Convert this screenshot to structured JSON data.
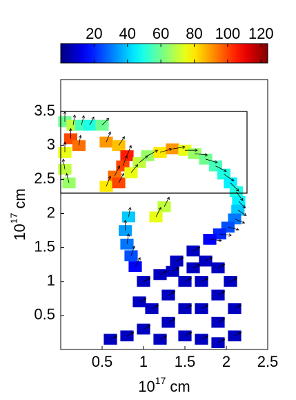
{
  "chart_data": {
    "type": "quiver",
    "xlabel": {
      "base": "10",
      "exponent": "17",
      "unit": "cm"
    },
    "ylabel": {
      "base": "10",
      "exponent": "17",
      "unit": "cm"
    },
    "xlim": [
      0,
      2.5
    ],
    "ylim": [
      0,
      3.97
    ],
    "xticks": [
      0.5,
      1,
      1.5,
      2,
      2.5
    ],
    "yticks": [
      0.5,
      1,
      1.5,
      2,
      2.5,
      3,
      3.5
    ],
    "colorbar": {
      "colormap": "jet",
      "clim": [
        0,
        124
      ],
      "ticks": [
        20,
        40,
        60,
        80,
        100,
        120
      ]
    },
    "box": {
      "x": [
        0,
        2.25
      ],
      "y": [
        2.3,
        3.5
      ]
    },
    "arrow_color": "#000000",
    "x": [
      0.05,
      0.15,
      0.25,
      0.35,
      0.5,
      0.12,
      0.22,
      0.05,
      0.05,
      0.1,
      0.55,
      0.7,
      0.8,
      0.75,
      0.65,
      0.55,
      0.7,
      0.85,
      0.95,
      1.05,
      1.2,
      1.35,
      1.5,
      1.62,
      1.75,
      1.87,
      1.97,
      2.05,
      2.12,
      2.15,
      2.14,
      2.1,
      2.02,
      1.92,
      1.8,
      1.15,
      1.25,
      0.82,
      0.78,
      0.8,
      0.85,
      0.9,
      1.0,
      1.2,
      1.4,
      1.6,
      1.75,
      1.9,
      2.05,
      1.1,
      1.3,
      1.5,
      1.7,
      1.9,
      2.1,
      1.3,
      1.5,
      1.7,
      1.9,
      2.1,
      1.0,
      0.8,
      1.2,
      1.5,
      1.7,
      1.9,
      0.95,
      0.6,
      1.35,
      1.6
    ],
    "y": [
      3.35,
      3.3,
      3.3,
      3.3,
      3.3,
      3.1,
      3.0,
      2.9,
      2.65,
      2.45,
      3.05,
      3.0,
      2.85,
      2.7,
      2.55,
      2.4,
      2.45,
      2.6,
      2.75,
      2.85,
      2.9,
      2.95,
      2.93,
      2.88,
      2.8,
      2.7,
      2.58,
      2.45,
      2.32,
      2.18,
      2.05,
      1.92,
      1.8,
      1.7,
      1.62,
      1.95,
      2.1,
      1.95,
      1.75,
      1.55,
      1.38,
      1.22,
      1.0,
      1.1,
      1.3,
      1.45,
      1.3,
      1.2,
      1.0,
      0.6,
      0.8,
      1.0,
      1.0,
      0.8,
      0.6,
      0.4,
      0.6,
      0.6,
      0.4,
      0.2,
      0.3,
      0.2,
      0.15,
      0.2,
      0.15,
      0.1,
      0.7,
      0.15,
      1.15,
      1.2
    ],
    "u": [
      0.0,
      0.02,
      0.03,
      0.05,
      0.08,
      0.0,
      0.02,
      0.0,
      -0.02,
      -0.03,
      0.05,
      0.07,
      0.05,
      0.05,
      0.06,
      0.05,
      0.06,
      0.08,
      0.1,
      0.12,
      0.14,
      0.15,
      0.15,
      0.15,
      0.14,
      0.13,
      0.12,
      0.1,
      0.08,
      0.08,
      0.1,
      0.12,
      0.13,
      0.14,
      0.14,
      0.06,
      0.06,
      0.02,
      0.0,
      0.02,
      0.04,
      0.06,
      0.08,
      0.08,
      0.08,
      0.08,
      0.08,
      0.08,
      0.08,
      0.08,
      0.08,
      0.08,
      0.08,
      0.08,
      0.08,
      0.08,
      0.08,
      0.08,
      0.08,
      0.08,
      0.08,
      0.08,
      0.08,
      0.08,
      0.08,
      0.08,
      0.08,
      0.08,
      0.08,
      0.08
    ],
    "v": [
      0.15,
      0.15,
      0.14,
      0.12,
      0.1,
      0.15,
      0.15,
      0.15,
      0.15,
      0.14,
      0.15,
      0.13,
      0.15,
      0.15,
      0.15,
      0.15,
      0.14,
      0.12,
      0.1,
      0.08,
      0.05,
      0.03,
      0.0,
      -0.02,
      -0.05,
      -0.08,
      -0.1,
      -0.12,
      -0.13,
      -0.1,
      -0.08,
      -0.06,
      -0.04,
      -0.02,
      -0.02,
      0.14,
      0.14,
      0.14,
      0.15,
      0.15,
      0.14,
      0.13,
      0.05,
      0.05,
      0.05,
      0.05,
      0.05,
      0.05,
      0.05,
      0.05,
      0.05,
      0.05,
      0.05,
      0.05,
      0.05,
      0.05,
      0.05,
      0.05,
      0.05,
      0.05,
      0.05,
      0.05,
      0.05,
      0.05,
      0.05,
      0.05,
      0.05,
      0.05,
      0.05,
      0.05
    ],
    "values": [
      60,
      70,
      55,
      50,
      60,
      100,
      95,
      75,
      70,
      65,
      90,
      85,
      105,
      100,
      95,
      80,
      100,
      75,
      70,
      65,
      80,
      90,
      75,
      65,
      60,
      55,
      50,
      45,
      50,
      45,
      40,
      30,
      25,
      20,
      15,
      75,
      70,
      40,
      35,
      30,
      25,
      15,
      8,
      8,
      8,
      8,
      8,
      8,
      8,
      8,
      8,
      8,
      8,
      8,
      8,
      8,
      8,
      8,
      8,
      8,
      8,
      8,
      8,
      8,
      8,
      8,
      8,
      8,
      8,
      8
    ]
  }
}
